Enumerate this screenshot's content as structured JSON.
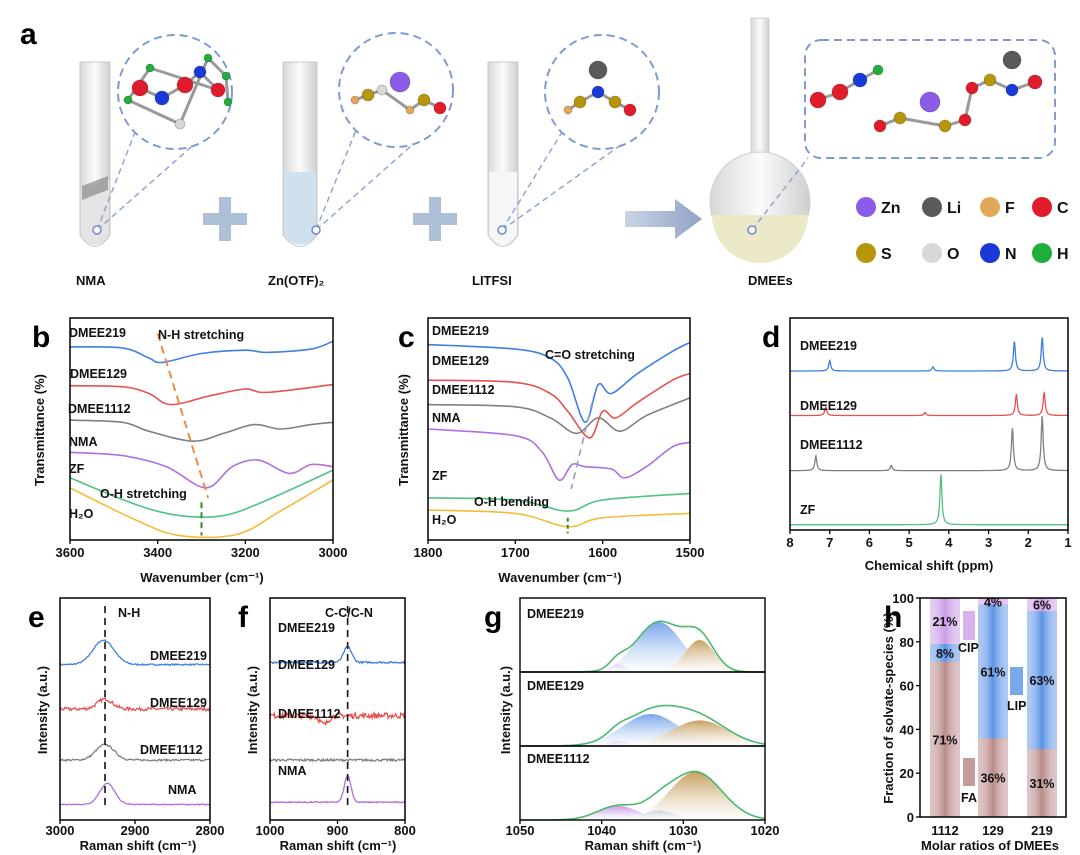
{
  "panel_labels": {
    "a": "a",
    "b": "b",
    "c": "c",
    "d": "d",
    "e": "e",
    "f": "f",
    "g": "g",
    "h": "h"
  },
  "panel_a": {
    "components": [
      "NMA",
      "Zn(OTF)₂",
      "LITFSI",
      "DMEEs"
    ],
    "legend": [
      {
        "symbol": "Zn",
        "color": "#8a5ce8"
      },
      {
        "symbol": "Li",
        "color": "#5a5a5a"
      },
      {
        "symbol": "F",
        "color": "#e2a85a"
      },
      {
        "symbol": "C",
        "color": "#e01c2c"
      },
      {
        "symbol": "S",
        "color": "#b8960c"
      },
      {
        "symbol": "O",
        "color": "#d8d8d8"
      },
      {
        "symbol": "N",
        "color": "#1a3ad8"
      },
      {
        "symbol": "H",
        "color": "#1fae3a"
      }
    ]
  },
  "chart_data": [
    {
      "panel": "b",
      "type": "line",
      "xlabel": "Wavenumber (cm⁻¹)",
      "ylabel": "Transmittance (%)",
      "xlim": [
        3600,
        3000
      ],
      "ylim": [
        0,
        10
      ],
      "xticks": [
        3600,
        3400,
        3200,
        3000
      ],
      "annotations": [
        "N-H stretching",
        "O-H stretching"
      ],
      "series": [
        {
          "name": "DMEE219",
          "color": "#3f7fe0",
          "points": [
            [
              3600,
              8.7
            ],
            [
              3480,
              8.65
            ],
            [
              3420,
              8.2
            ],
            [
              3390,
              8.0
            ],
            [
              3300,
              8.4
            ],
            [
              3200,
              8.55
            ],
            [
              3150,
              8.45
            ],
            [
              3050,
              8.6
            ],
            [
              3000,
              8.95
            ]
          ]
        },
        {
          "name": "DMEE129",
          "color": "#e65252",
          "points": [
            [
              3600,
              6.95
            ],
            [
              3480,
              6.9
            ],
            [
              3420,
              6.6
            ],
            [
              3370,
              6.1
            ],
            [
              3280,
              6.5
            ],
            [
              3200,
              6.8
            ],
            [
              3150,
              6.65
            ],
            [
              3000,
              7.0
            ]
          ]
        },
        {
          "name": "DMEE1112",
          "color": "#808080",
          "points": [
            [
              3600,
              5.4
            ],
            [
              3480,
              5.3
            ],
            [
              3420,
              4.9
            ],
            [
              3320,
              4.45
            ],
            [
              3250,
              4.8
            ],
            [
              3180,
              5.2
            ],
            [
              3120,
              5.0
            ],
            [
              3050,
              5.2
            ],
            [
              3000,
              5.3
            ]
          ]
        },
        {
          "name": "NMA",
          "color": "#b06ee0",
          "points": [
            [
              3600,
              3.95
            ],
            [
              3480,
              3.8
            ],
            [
              3380,
              3.3
            ],
            [
              3290,
              2.35
            ],
            [
              3230,
              3.3
            ],
            [
              3170,
              3.6
            ],
            [
              3100,
              3.0
            ],
            [
              3050,
              3.4
            ],
            [
              3000,
              3.3
            ]
          ]
        },
        {
          "name": "ZF",
          "color": "#52c283",
          "points": [
            [
              3600,
              2.8
            ],
            [
              3450,
              1.6
            ],
            [
              3350,
              1.1
            ],
            [
              3250,
              1.1
            ],
            [
              3150,
              1.8
            ],
            [
              3000,
              3.15
            ]
          ]
        },
        {
          "name": "H₂O",
          "color": "#f2bd3a",
          "points": [
            [
              3600,
              2.35
            ],
            [
              3450,
              0.9
            ],
            [
              3350,
              0.2
            ],
            [
              3220,
              0.25
            ],
            [
              3120,
              1.3
            ],
            [
              3000,
              2.7
            ]
          ]
        }
      ]
    },
    {
      "panel": "c",
      "type": "line",
      "xlabel": "Wavenumber (cm⁻¹)",
      "ylabel": "Transmittance (%)",
      "xlim": [
        1800,
        1500
      ],
      "ylim": [
        0,
        10
      ],
      "xticks": [
        1800,
        1700,
        1600,
        1500
      ],
      "annotations": [
        "C=O stretching",
        "O-H bending"
      ],
      "series": [
        {
          "name": "DMEE219",
          "color": "#3f7fe0",
          "points": [
            [
              1800,
              8.8
            ],
            [
              1700,
              8.6
            ],
            [
              1660,
              8.2
            ],
            [
              1640,
              7.3
            ],
            [
              1620,
              5.3
            ],
            [
              1605,
              7.0
            ],
            [
              1590,
              6.6
            ],
            [
              1560,
              7.5
            ],
            [
              1520,
              8.5
            ],
            [
              1500,
              8.9
            ]
          ]
        },
        {
          "name": "DMEE129",
          "color": "#e65252",
          "points": [
            [
              1800,
              7.2
            ],
            [
              1700,
              7.1
            ],
            [
              1660,
              6.6
            ],
            [
              1640,
              5.8
            ],
            [
              1615,
              4.6
            ],
            [
              1600,
              5.8
            ],
            [
              1585,
              5.5
            ],
            [
              1560,
              6.2
            ],
            [
              1520,
              7.2
            ],
            [
              1500,
              7.5
            ]
          ]
        },
        {
          "name": "DMEE1112",
          "color": "#808080",
          "points": [
            [
              1800,
              6.1
            ],
            [
              1700,
              6.0
            ],
            [
              1660,
              5.5
            ],
            [
              1630,
              4.8
            ],
            [
              1605,
              5.5
            ],
            [
              1580,
              4.9
            ],
            [
              1550,
              5.6
            ],
            [
              1500,
              6.4
            ]
          ]
        },
        {
          "name": "NMA",
          "color": "#b06ee0",
          "points": [
            [
              1800,
              5.0
            ],
            [
              1700,
              4.7
            ],
            [
              1670,
              4.0
            ],
            [
              1650,
              2.7
            ],
            [
              1635,
              3.4
            ],
            [
              1620,
              3.3
            ],
            [
              1590,
              3.2
            ],
            [
              1575,
              2.8
            ],
            [
              1550,
              3.3
            ],
            [
              1520,
              4.2
            ],
            [
              1500,
              4.4
            ]
          ]
        },
        {
          "name": "ZF",
          "color": "#52c283",
          "points": [
            [
              1800,
              1.9
            ],
            [
              1700,
              1.8
            ],
            [
              1640,
              1.3
            ],
            [
              1600,
              1.8
            ],
            [
              1500,
              2.1
            ]
          ]
        },
        {
          "name": "H₂O",
          "color": "#f2bd3a",
          "points": [
            [
              1800,
              1.35
            ],
            [
              1700,
              1.2
            ],
            [
              1640,
              0.6
            ],
            [
              1600,
              1.0
            ],
            [
              1500,
              1.2
            ]
          ]
        }
      ]
    },
    {
      "panel": "d",
      "type": "line",
      "xlabel": "Chemical shift (ppm)",
      "ylabel": "",
      "xlim": [
        8,
        1
      ],
      "ylim": [
        0,
        10
      ],
      "xticks": [
        8,
        7,
        6,
        5,
        4,
        3,
        2,
        1
      ],
      "series": [
        {
          "name": "DMEE219",
          "color": "#3f7fe0",
          "baseline": 7.5,
          "peaks": [
            [
              7.0,
              0.5
            ],
            [
              4.4,
              0.2
            ],
            [
              2.35,
              1.4
            ],
            [
              1.65,
              1.6
            ]
          ]
        },
        {
          "name": "DMEE129",
          "color": "#e65252",
          "baseline": 5.4,
          "peaks": [
            [
              7.1,
              0.4
            ],
            [
              4.6,
              0.15
            ],
            [
              2.3,
              1.0
            ],
            [
              1.6,
              1.1
            ]
          ]
        },
        {
          "name": "DMEE1112",
          "color": "#808080",
          "baseline": 2.8,
          "peaks": [
            [
              7.35,
              0.7
            ],
            [
              5.45,
              0.25
            ],
            [
              2.4,
              2.0
            ],
            [
              1.65,
              2.6
            ]
          ]
        },
        {
          "name": "ZF",
          "color": "#52c283",
          "baseline": 0.25,
          "peaks": [
            [
              4.2,
              2.4
            ]
          ]
        }
      ]
    },
    {
      "panel": "e",
      "type": "line",
      "xlabel": "Raman shift (cm⁻¹)",
      "ylabel": "Intensity (a.u.)",
      "xlim": [
        3000,
        2800
      ],
      "ylim": [
        0,
        10
      ],
      "xticks": [
        3000,
        2900,
        2800
      ],
      "annotations": [
        "N-H"
      ],
      "marker_x": 2940,
      "series": [
        {
          "name": "DMEE219",
          "color": "#3f7fe0",
          "baseline": 7.0,
          "noise": 0.06,
          "peaks": [
            [
              2942,
              1.1,
              14
            ]
          ]
        },
        {
          "name": "DMEE129",
          "color": "#e65252",
          "baseline": 5.0,
          "noise": 0.15,
          "peaks": [
            [
              2940,
              0.45,
              10
            ]
          ]
        },
        {
          "name": "DMEE1112",
          "color": "#808080",
          "baseline": 2.7,
          "noise": 0.08,
          "peaks": [
            [
              2940,
              0.7,
              12
            ]
          ]
        },
        {
          "name": "NMA",
          "color": "#b06ee0",
          "baseline": 0.7,
          "noise": 0.04,
          "peaks": [
            [
              2937,
              0.95,
              10
            ]
          ]
        }
      ]
    },
    {
      "panel": "f",
      "type": "line",
      "xlabel": "Raman shift (cm⁻¹)",
      "ylabel": "Intensity (a.u.)",
      "xlim": [
        1000,
        800
      ],
      "ylim": [
        0,
        10
      ],
      "xticks": [
        1000,
        900,
        800
      ],
      "annotations": [
        "C-C/C-N"
      ],
      "marker_x": 885,
      "series": [
        {
          "name": "DMEE219",
          "color": "#3f7fe0",
          "baseline": 7.1,
          "noise": 0.08,
          "peaks": [
            [
              885,
              0.7,
              6
            ]
          ]
        },
        {
          "name": "DMEE129",
          "color": "#e65252",
          "baseline": 4.7,
          "noise": 0.25,
          "peaks": [
            [
              920,
              -0.4,
              6
            ]
          ]
        },
        {
          "name": "DMEE1112",
          "color": "#808080",
          "baseline": 2.7,
          "noise": 0.1,
          "peaks": []
        },
        {
          "name": "NMA",
          "color": "#b06ee0",
          "baseline": 0.8,
          "noise": 0.05,
          "peaks": [
            [
              885,
              1.2,
              5
            ]
          ]
        }
      ]
    },
    {
      "panel": "g",
      "type": "area",
      "xlabel": "Raman shift (cm⁻¹)",
      "ylabel": "Intensity (a.u.)",
      "xlim": [
        1050,
        1020
      ],
      "xticks": [
        1050,
        1040,
        1030,
        1020
      ],
      "envelope_color": "#4cb870",
      "subplots": [
        {
          "name": "DMEE219",
          "components": [
            {
              "species": "CIP",
              "center": 1038,
              "amp": 0.12,
              "sigma": 1.0,
              "color": "#c89ae8"
            },
            {
              "species": "LIP",
              "center": 1033,
              "amp": 0.78,
              "sigma": 2.8,
              "color": "#7aa6ea"
            },
            {
              "species": "FA",
              "center": 1028,
              "amp": 0.5,
              "sigma": 1.8,
              "color": "#c8a060"
            }
          ]
        },
        {
          "name": "DMEE129",
          "components": [
            {
              "species": "CIP",
              "center": 1038,
              "amp": 0.08,
              "sigma": 1.2,
              "color": "#c89ae8"
            },
            {
              "species": "LIP",
              "center": 1034,
              "amp": 0.5,
              "sigma": 3.5,
              "color": "#7aa6ea"
            },
            {
              "species": "FA",
              "center": 1028,
              "amp": 0.4,
              "sigma": 3.5,
              "color": "#c8a060"
            }
          ]
        },
        {
          "name": "DMEE1112",
          "components": [
            {
              "species": "CIP",
              "center": 1038,
              "amp": 0.22,
              "sigma": 2.5,
              "color": "#c89ae8"
            },
            {
              "species": "LIP",
              "center": 1033,
              "amp": 0.15,
              "sigma": 1.8,
              "color": "#7aa6ea"
            },
            {
              "species": "FA",
              "center": 1028.5,
              "amp": 0.75,
              "sigma": 3.2,
              "color": "#c8a060"
            }
          ]
        }
      ]
    },
    {
      "panel": "h",
      "type": "bar",
      "stacked": true,
      "xlabel": "Molar ratios of DMEEs",
      "ylabel": "Fraction of solvate-species (%)",
      "ylim": [
        0,
        100
      ],
      "yticks": [
        0,
        20,
        40,
        60,
        80,
        100
      ],
      "categories": [
        "1112",
        "129",
        "219"
      ],
      "series": [
        {
          "name": "FA",
          "color": "#b98a8a",
          "values": [
            71,
            36,
            31
          ]
        },
        {
          "name": "LIP",
          "color": "#5b93e6",
          "values": [
            8,
            61,
            63
          ]
        },
        {
          "name": "CIP",
          "color": "#c99ae6",
          "values": [
            21,
            4,
            6
          ]
        }
      ]
    }
  ]
}
